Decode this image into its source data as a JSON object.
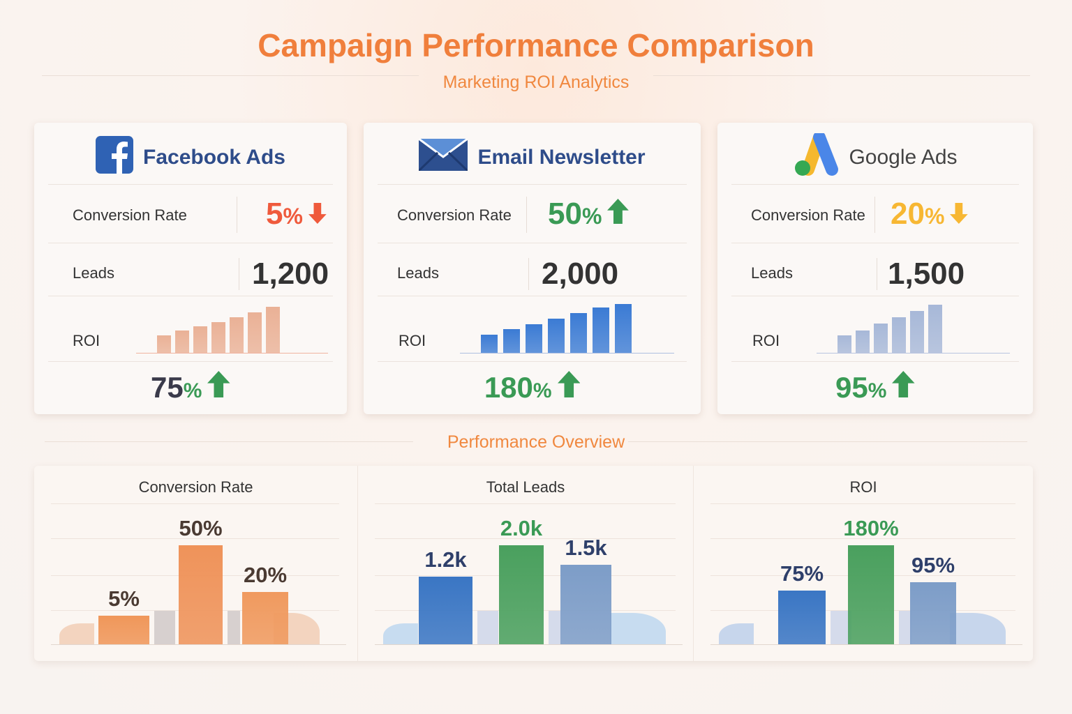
{
  "header": {
    "title": "Campaign Performance Comparison",
    "subtitle": "Marketing ROI Analytics"
  },
  "colors": {
    "accent": "#f07f3c",
    "down_red": "#ef5a3c",
    "up_green": "#3a9a55",
    "yellow": "#f7b733",
    "navy": "#2e4c8a"
  },
  "cards": [
    {
      "name": "Facebook Ads",
      "icon": "facebook-icon",
      "conversion_label": "Conversion Rate",
      "conversion_value": "5",
      "conversion_unit": "%",
      "conversion_trend": "down",
      "leads_label": "Leads",
      "leads_value": "1,200",
      "roi_label": "ROI",
      "roi_value": "75",
      "roi_unit": "%",
      "roi_trend": "up",
      "roi_trend_bars": [
        25,
        32,
        38,
        44,
        51,
        58,
        66
      ]
    },
    {
      "name": "Email Newsletter",
      "icon": "envelope-icon",
      "conversion_label": "Conversion Rate",
      "conversion_value": "50",
      "conversion_unit": "%",
      "conversion_trend": "up",
      "leads_label": "Leads",
      "leads_value": "2,000",
      "roi_label": "ROI",
      "roi_value": "180",
      "roi_unit": "%",
      "roi_trend": "up",
      "roi_trend_bars": [
        26,
        34,
        41,
        49,
        57,
        65,
        70
      ]
    },
    {
      "name": "Google Ads",
      "icon": "google-ads-icon",
      "conversion_label": "Conversion Rate",
      "conversion_value": "20",
      "conversion_unit": "%",
      "conversion_trend": "down",
      "leads_label": "Leads",
      "leads_value": "1,500",
      "roi_label": "ROI",
      "roi_value": "95",
      "roi_unit": "%",
      "roi_trend": "up",
      "roi_trend_bars": [
        25,
        32,
        42,
        51,
        60,
        69
      ]
    }
  ],
  "overview_title": "Performance Overview",
  "chart_data": [
    {
      "type": "bar",
      "title": "Conversion Rate",
      "categories": [
        "Facebook Ads",
        "Email Newsletter",
        "Google Ads"
      ],
      "values": [
        5,
        50,
        20
      ],
      "labels": [
        "5%",
        "50%",
        "20%"
      ],
      "colors": [
        "#f0975a",
        "#ef935a",
        "#f09a5f"
      ]
    },
    {
      "type": "bar",
      "title": "Total Leads",
      "categories": [
        "Facebook Ads",
        "Email Newsletter",
        "Google Ads"
      ],
      "values": [
        1200,
        2000,
        1500
      ],
      "labels": [
        "1.2k",
        "2.0k",
        "1.5k"
      ],
      "colors": [
        "#3a76c4",
        "#4aa05e",
        "#7d9dc8"
      ]
    },
    {
      "type": "bar",
      "title": "ROI",
      "categories": [
        "Facebook Ads",
        "Email Newsletter",
        "Google Ads"
      ],
      "values": [
        75,
        180,
        95
      ],
      "labels": [
        "75%",
        "180%",
        "95%"
      ],
      "colors": [
        "#3a76c4",
        "#4aa05e",
        "#7d9dc8"
      ]
    }
  ]
}
